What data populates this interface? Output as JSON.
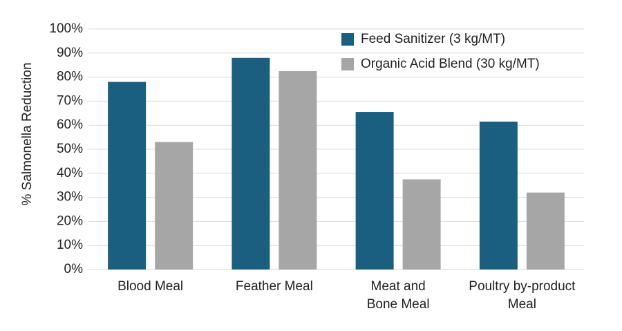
{
  "chart_data": {
    "type": "bar",
    "y_label": "% Salmonella Reduction",
    "categories": [
      "Blood Meal",
      "Feather Meal",
      "Meat and\nBone Meal",
      "Poultry by-product\nMeal"
    ],
    "series": [
      {
        "name": "Feed Sanitizer (3 kg/MT)",
        "color": "#1a5e80",
        "values": [
          78,
          88,
          65.5,
          61.5
        ]
      },
      {
        "name": "Organic Acid Blend (30 kg/MT)",
        "color": "#a6a6a6",
        "values": [
          53,
          82.5,
          37.5,
          32
        ]
      }
    ],
    "ylim": [
      0,
      100
    ],
    "yticks": [
      {
        "value": 0,
        "label": "0%"
      },
      {
        "value": 10,
        "label": "10%"
      },
      {
        "value": 20,
        "label": "20%"
      },
      {
        "value": 30,
        "label": "30%"
      },
      {
        "value": 40,
        "label": "40%"
      },
      {
        "value": 50,
        "label": "50%"
      },
      {
        "value": 60,
        "label": "60%"
      },
      {
        "value": 70,
        "label": "70%"
      },
      {
        "value": 80,
        "label": "80%"
      },
      {
        "value": 90,
        "label": "90%"
      },
      {
        "value": 100,
        "label": "100%"
      }
    ],
    "grid": true,
    "legend": "top-right"
  }
}
